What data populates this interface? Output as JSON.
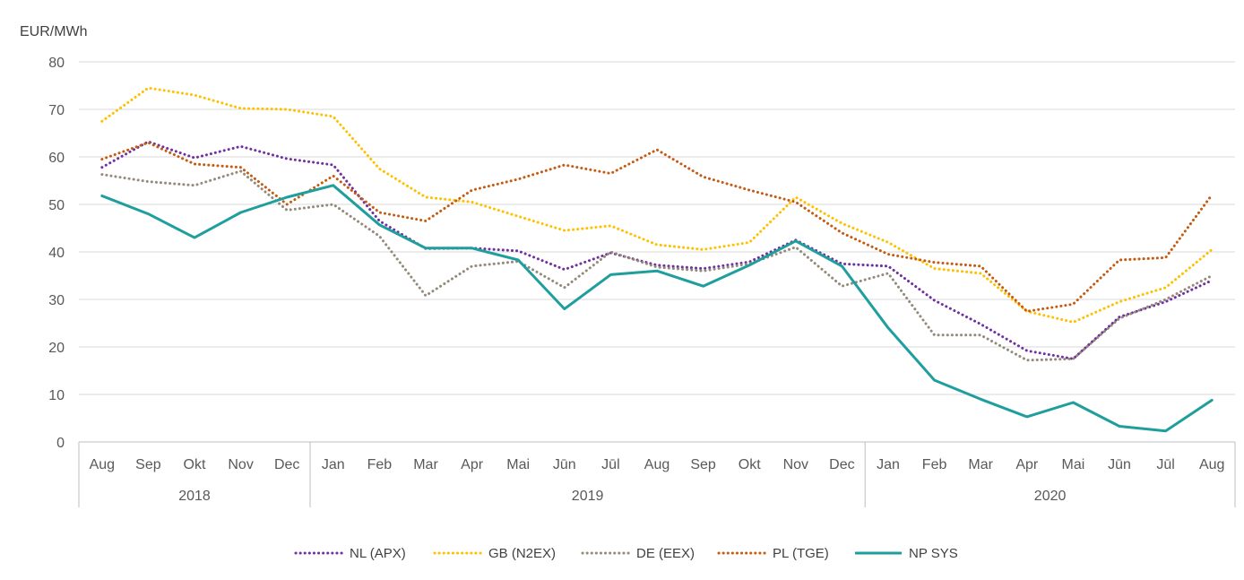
{
  "chart_data": {
    "type": "line",
    "ylabel": "EUR/MWh",
    "ylim": [
      0,
      80
    ],
    "yticks": [
      0,
      10,
      20,
      30,
      40,
      50,
      60,
      70,
      80
    ],
    "grid": "horizontal",
    "legend_position": "bottom",
    "categories": [
      "Aug",
      "Sep",
      "Okt",
      "Nov",
      "Dec",
      "Jan",
      "Feb",
      "Mar",
      "Apr",
      "Mai",
      "Jūn",
      "Jūl",
      "Aug",
      "Sep",
      "Okt",
      "Nov",
      "Dec",
      "Jan",
      "Feb",
      "Mar",
      "Apr",
      "Mai",
      "Jūn",
      "Jūl",
      "Aug"
    ],
    "groups": [
      {
        "label": "2018",
        "start": 0,
        "end": 4
      },
      {
        "label": "2019",
        "start": 5,
        "end": 16
      },
      {
        "label": "2020",
        "start": 17,
        "end": 24
      }
    ],
    "series": [
      {
        "name": "NL (APX)",
        "color": "#7030a0",
        "style": "dotted",
        "values": [
          57.8,
          63.2,
          59.8,
          62.2,
          59.6,
          58.3,
          46.5,
          40.7,
          40.8,
          40.2,
          36.3,
          39.8,
          37.2,
          36.5,
          37.9,
          42.5,
          37.5,
          37.0,
          29.8,
          24.8,
          19.2,
          17.5,
          26.3,
          29.5,
          34.0
        ]
      },
      {
        "name": "GB (N2EX)",
        "color": "#ffc000",
        "style": "dotted",
        "values": [
          67.5,
          74.5,
          73.0,
          70.2,
          70.0,
          68.5,
          57.5,
          51.5,
          50.5,
          47.5,
          44.5,
          45.5,
          41.5,
          40.5,
          42.0,
          51.5,
          46.0,
          42.0,
          36.5,
          35.5,
          27.5,
          25.2,
          29.5,
          32.5,
          40.5
        ]
      },
      {
        "name": "DE (EEX)",
        "color": "#948a7a",
        "style": "dotted",
        "values": [
          56.3,
          54.8,
          54.0,
          57.0,
          48.8,
          50.0,
          43.3,
          30.8,
          37.0,
          38.0,
          32.5,
          40.0,
          36.8,
          36.0,
          37.5,
          41.0,
          32.8,
          35.5,
          22.5,
          22.5,
          17.2,
          17.5,
          26.0,
          30.0,
          35.0
        ]
      },
      {
        "name": "PL (TGE)",
        "color": "#c55a11",
        "style": "dotted",
        "values": [
          59.5,
          63.0,
          58.5,
          57.8,
          50.0,
          56.0,
          48.3,
          46.5,
          53.0,
          55.3,
          58.3,
          56.5,
          61.5,
          55.8,
          53.0,
          50.5,
          44.0,
          39.5,
          37.8,
          37.0,
          27.5,
          29.0,
          38.3,
          38.8,
          52.0
        ]
      },
      {
        "name": "NP SYS",
        "color": "#1f9e9e",
        "style": "solid",
        "values": [
          51.8,
          48.0,
          43.0,
          48.3,
          51.5,
          54.0,
          45.7,
          40.8,
          40.8,
          38.3,
          28.0,
          35.2,
          36.0,
          32.8,
          37.2,
          42.3,
          37.0,
          24.0,
          13.0,
          9.0,
          5.3,
          8.3,
          3.3,
          2.3,
          8.8
        ]
      }
    ]
  }
}
